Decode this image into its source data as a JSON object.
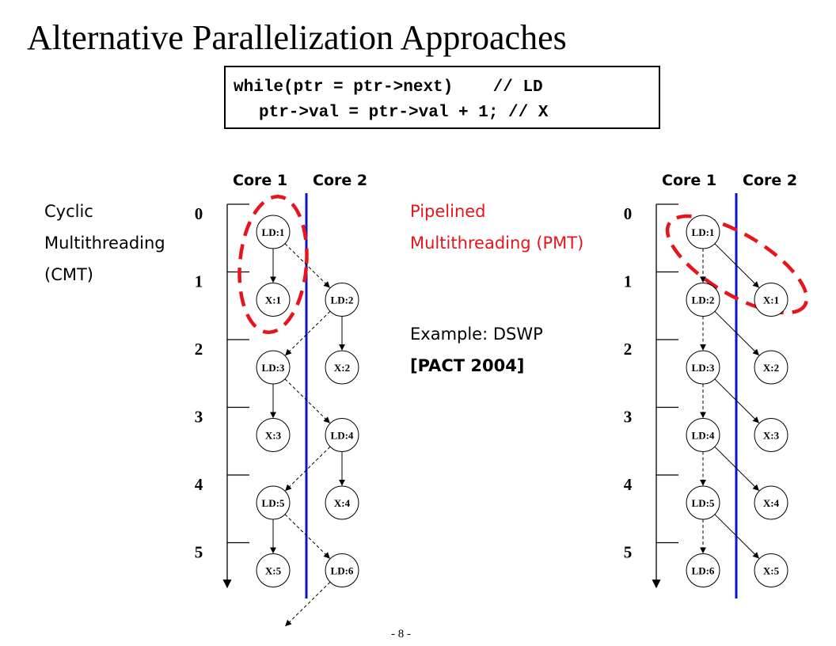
{
  "title": "Alternative Parallelization Approaches",
  "code": {
    "line1": "while(ptr = ptr->next)    // LD",
    "line2": "ptr->val = ptr->val + 1; // X"
  },
  "cmt": {
    "label": [
      "Cyclic",
      "Multithreading",
      "(CMT)"
    ],
    "core1": "Core 1",
    "core2": "Core 2",
    "ticks": [
      "0",
      "1",
      "2",
      "3",
      "4",
      "5"
    ],
    "col1": [
      "LD:1",
      "X:1",
      "LD:3",
      "X:3",
      "LD:5",
      "X:5"
    ],
    "col2": [
      "LD:2",
      "X:2",
      "LD:4",
      "X:4",
      "LD:6"
    ]
  },
  "pmt": {
    "label": [
      "Pipelined",
      "Multithreading (PMT)"
    ],
    "example": "Example: DSWP",
    "citation": "[PACT 2004]",
    "core1": "Core 1",
    "core2": "Core 2",
    "ticks": [
      "0",
      "1",
      "2",
      "3",
      "4",
      "5"
    ],
    "col1": [
      "LD:1",
      "LD:2",
      "LD:3",
      "LD:4",
      "LD:5",
      "LD:6"
    ],
    "col2": [
      "X:1",
      "X:2",
      "X:3",
      "X:4",
      "X:5"
    ]
  },
  "footer": "- 8 -",
  "colors": {
    "accent_red": "#e8141b",
    "divider_blue": "#0a14c8"
  }
}
